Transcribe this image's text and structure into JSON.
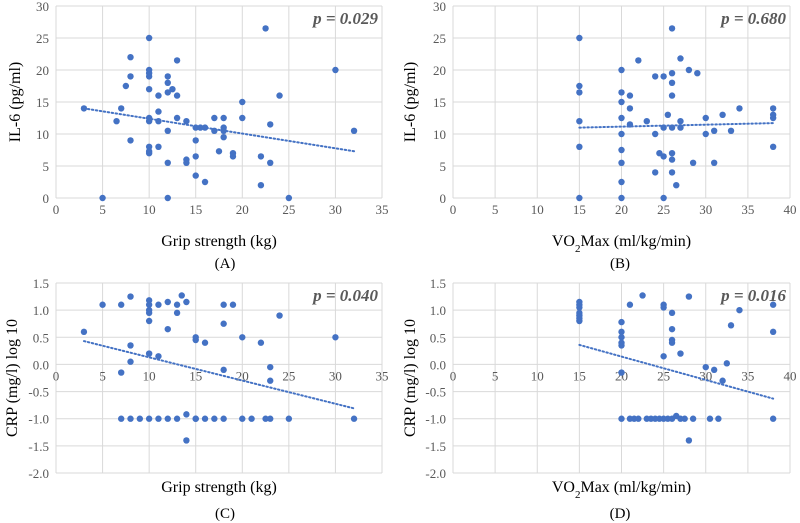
{
  "figure": {
    "panel_letters": [
      "(A)",
      "(B)",
      "(C)",
      "(D)"
    ]
  },
  "colors": {
    "marker": "#4472C4",
    "trendline": "#4472C4",
    "grid": "#d9d9d9",
    "axis_text": "#595959",
    "title_text": "#000000"
  },
  "chart_data": [
    {
      "id": "A",
      "type": "scatter",
      "xlabel": "Grip strength (kg)",
      "ylabel": "IL-6 (pg/ml)",
      "annotation": "p = 0.029",
      "xlim": [
        0,
        35
      ],
      "ylim": [
        0,
        30
      ],
      "xticks": [
        0,
        5,
        10,
        15,
        20,
        25,
        30,
        35
      ],
      "yticks": [
        0,
        5,
        10,
        15,
        20,
        25,
        30
      ],
      "xtick_labels": [
        "0",
        "5",
        "10",
        "15",
        "20",
        "25",
        "30",
        "35"
      ],
      "ytick_labels": [
        "0",
        "5",
        "10",
        "15",
        "20",
        "25",
        "30"
      ],
      "grid": true,
      "trendline": {
        "x": [
          3,
          32
        ],
        "y": [
          14.0,
          7.3
        ]
      },
      "x": [
        3,
        5,
        6.5,
        7,
        7.5,
        8,
        8,
        8,
        10,
        10,
        10,
        10,
        10,
        10,
        10,
        10,
        10,
        10,
        11,
        11,
        11,
        11,
        12,
        12,
        12,
        12,
        12,
        12,
        12.5,
        13,
        13,
        13,
        14,
        14,
        14,
        15,
        15,
        15,
        15,
        15.5,
        16,
        16,
        17,
        17,
        17.5,
        18,
        18,
        18,
        18,
        19,
        19,
        20,
        20,
        22,
        22,
        22.5,
        23,
        23,
        24,
        25,
        30,
        32
      ],
      "y": [
        14,
        0,
        12,
        14,
        17.5,
        22,
        19,
        9,
        25,
        20,
        19.5,
        19,
        17,
        12.5,
        12,
        8,
        7.3,
        7,
        16,
        13.5,
        12,
        8,
        19,
        18,
        16.5,
        10.5,
        5.5,
        0,
        17,
        21.5,
        16,
        12.5,
        12,
        6,
        5.5,
        11,
        9,
        6.5,
        3.5,
        11,
        11,
        2.5,
        12.5,
        10.5,
        7.3,
        12.5,
        11,
        10.5,
        9.5,
        7,
        6.5,
        15,
        12.5,
        6.5,
        2,
        26.5,
        11.5,
        5.5,
        16,
        0,
        20,
        10.5
      ]
    },
    {
      "id": "B",
      "type": "scatter",
      "xlabel": "VO2Max (ml/kg/min)",
      "ylabel": "IL-6 (pg/ml)",
      "annotation": "p = 0.680",
      "xlim": [
        0,
        40
      ],
      "ylim": [
        0,
        30
      ],
      "xticks": [
        0,
        5,
        10,
        15,
        20,
        25,
        30,
        35,
        40
      ],
      "yticks": [
        0,
        5,
        10,
        15,
        20,
        25,
        30
      ],
      "xtick_labels": [
        "0",
        "5",
        "10",
        "15",
        "20",
        "25",
        "30",
        "35",
        "40"
      ],
      "ytick_labels": [
        "0",
        "5",
        "10",
        "15",
        "20",
        "25",
        "30"
      ],
      "grid": true,
      "trendline": {
        "x": [
          15,
          38
        ],
        "y": [
          11.0,
          11.7
        ]
      },
      "x": [
        15,
        15,
        15,
        15,
        15,
        15,
        20,
        20,
        20,
        20,
        20,
        20,
        20,
        20,
        20,
        21,
        21,
        21,
        22,
        23,
        24,
        24,
        24,
        24.5,
        25,
        25,
        25,
        25,
        25.5,
        26,
        26,
        26,
        26,
        26,
        26,
        26,
        26,
        26.5,
        27,
        27,
        27,
        28,
        28.5,
        29,
        30,
        30,
        31,
        31,
        32,
        33,
        34,
        38,
        38,
        38,
        38
      ],
      "y": [
        25,
        17.5,
        16.5,
        12,
        8,
        0,
        20,
        16.5,
        15,
        12.5,
        10,
        7.5,
        5.5,
        2.5,
        0,
        16,
        14,
        11.5,
        21.5,
        12,
        4,
        10,
        19,
        7,
        19,
        11,
        6.5,
        0,
        13,
        26.5,
        19.5,
        18,
        16,
        11,
        7,
        6,
        4,
        2,
        12,
        11,
        21.8,
        20,
        5.5,
        19.5,
        12.5,
        10,
        10.5,
        5.5,
        13,
        10.5,
        14,
        14,
        13,
        12.5,
        8
      ]
    },
    {
      "id": "C",
      "type": "scatter",
      "xlabel": "Grip strength (kg)",
      "ylabel": "CRP (mg/l) log 10",
      "annotation": "p = 0.040",
      "xlim": [
        0,
        35
      ],
      "ylim": [
        -2,
        1.5
      ],
      "xticks": [
        0,
        5,
        10,
        15,
        20,
        25,
        30,
        35
      ],
      "yticks": [
        -2,
        -1.5,
        -1,
        -0.5,
        0,
        0.5,
        1,
        1.5
      ],
      "xtick_labels": [
        "0",
        "5",
        "10",
        "15",
        "20",
        "25",
        "30",
        "35"
      ],
      "ytick_labels": [
        "-2.0",
        "-1.5",
        "-1.0",
        "-0.5",
        "0.0",
        "0.5",
        "1.0",
        "1.5"
      ],
      "grid": true,
      "trendline": {
        "x": [
          3,
          32
        ],
        "y": [
          0.43,
          -0.81
        ]
      },
      "x": [
        3,
        5,
        7,
        7,
        7,
        8,
        8,
        8,
        8,
        9,
        10,
        10,
        10,
        10,
        10,
        10,
        10,
        11,
        11,
        11,
        12,
        12,
        12,
        13,
        13,
        13,
        13.5,
        14,
        14,
        14,
        15,
        15,
        15,
        15,
        16,
        16,
        17,
        18,
        18,
        18,
        18,
        19,
        20,
        20,
        21,
        22,
        22.5,
        23,
        23,
        23,
        24,
        25,
        30,
        32
      ],
      "y": [
        0.6,
        1.1,
        1.1,
        -0.15,
        -1,
        1.25,
        0.35,
        0.05,
        -1,
        -1,
        1.18,
        1.1,
        1.0,
        0.95,
        0.8,
        0.2,
        -1,
        1.1,
        0.15,
        -1,
        1.15,
        0.65,
        -1,
        1.1,
        0.95,
        -1,
        1.27,
        1.15,
        -1.4,
        -0.92,
        0.5,
        0.45,
        -1,
        -1,
        0.4,
        -1,
        -1,
        1.1,
        0.75,
        -0.1,
        -1,
        1.1,
        0.5,
        -1,
        -1,
        0.4,
        -1,
        -0.05,
        -0.3,
        -1,
        0.9,
        -1,
        0.5,
        -1
      ]
    },
    {
      "id": "D",
      "type": "scatter",
      "xlabel": "VO2Max (ml/kg/min)",
      "ylabel": "CRP (mg/l) log 10",
      "annotation": "p = 0.016",
      "xlim": [
        0,
        40
      ],
      "ylim": [
        -2,
        1.5
      ],
      "xticks": [
        0,
        5,
        10,
        15,
        20,
        25,
        30,
        35,
        40
      ],
      "yticks": [
        -2,
        -1.5,
        -1,
        -0.5,
        0,
        0.5,
        1,
        1.5
      ],
      "xtick_labels": [
        "0",
        "5",
        "10",
        "15",
        "20",
        "25",
        "30",
        "35",
        "40"
      ],
      "ytick_labels": [
        "-2.0",
        "-1.5",
        "-1.0",
        "-0.5",
        "0.0",
        "0.5",
        "1.0",
        "1.5"
      ],
      "grid": true,
      "trendline": {
        "x": [
          15,
          38
        ],
        "y": [
          0.36,
          -0.63
        ]
      },
      "x": [
        15,
        15,
        15,
        15,
        15,
        15,
        15,
        20,
        20,
        20,
        20,
        20,
        20,
        20,
        21,
        21,
        21.5,
        22,
        22.5,
        23,
        23.5,
        24,
        24.5,
        25,
        25,
        25,
        25,
        25.5,
        26,
        26,
        26,
        26,
        26,
        26.5,
        27,
        27,
        27.5,
        28,
        28,
        28.5,
        30,
        30.5,
        31,
        31.5,
        32,
        32.5,
        33,
        34,
        38,
        38,
        38
      ],
      "y": [
        1.15,
        1.1,
        1.05,
        0.95,
        0.9,
        0.85,
        0.8,
        0.78,
        0.6,
        0.5,
        0.4,
        0.35,
        -0.15,
        -1,
        1.1,
        -1,
        -1,
        -1,
        1.27,
        -1,
        -1,
        -1,
        -1,
        1.1,
        1.05,
        0.15,
        -1,
        -1,
        0.95,
        0.65,
        0.45,
        0.4,
        -1,
        -0.95,
        0.2,
        -1,
        -1,
        1.25,
        -1.4,
        -1,
        -0.05,
        -1,
        -0.1,
        -1,
        -0.3,
        0.02,
        0.72,
        1.0,
        1.1,
        0.6,
        -1
      ]
    }
  ]
}
